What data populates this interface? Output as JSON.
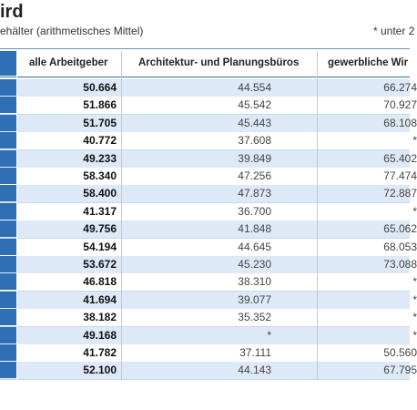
{
  "header": {
    "title": "ird",
    "subtitle": "ehälter (arithmetisches Mittel)",
    "note": "* unter 2"
  },
  "table": {
    "columns": [
      "alle Arbeitgeber",
      "Architektur- und Planungsbüros",
      "gewerbliche Wir"
    ],
    "rows": [
      [
        "50.664",
        "44.554",
        "66.274"
      ],
      [
        "51.866",
        "45.542",
        "70.927"
      ],
      [
        "51.705",
        "45.443",
        "68.108"
      ],
      [
        "40.772",
        "37.608",
        "*"
      ],
      [
        "49.233",
        "39.849",
        "65.402"
      ],
      [
        "58.340",
        "47.256",
        "77.474"
      ],
      [
        "58.400",
        "47.873",
        "72.887"
      ],
      [
        "41.317",
        "36.700",
        "*"
      ],
      [
        "49.756",
        "41.848",
        "65.062"
      ],
      [
        "54.194",
        "44.645",
        "68.053"
      ],
      [
        "53.672",
        "45.230",
        "73.088"
      ],
      [
        "46.818",
        "38.310",
        "*"
      ],
      [
        "41.694",
        "39.077",
        "*"
      ],
      [
        "38.182",
        "35.352",
        "*"
      ],
      [
        "49.168",
        "*",
        "*"
      ],
      [
        "41.782",
        "37.111",
        "50.560"
      ],
      [
        "52.100",
        "44.143",
        "67.795"
      ]
    ]
  }
}
